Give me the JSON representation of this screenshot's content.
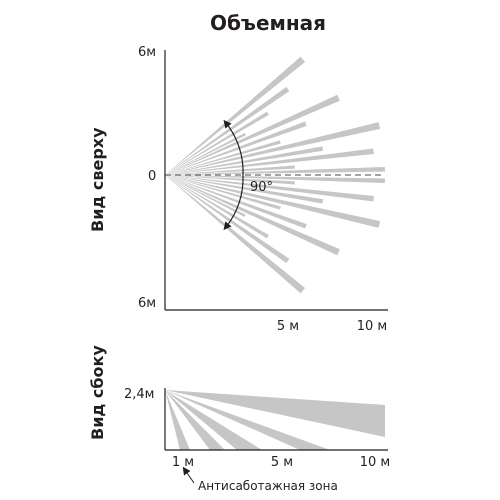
{
  "title": "Объемная",
  "top_view": {
    "label": "Вид сверху",
    "y_top_label": "6м",
    "y_mid_label": "0",
    "y_bottom_label": "6м",
    "x_label_5": "5 м",
    "x_label_10": "10 м",
    "angle_label": "90°"
  },
  "side_view": {
    "label": "Вид сбоку",
    "height_label": "2,4м",
    "x_label_1": "1 м",
    "x_label_5": "5 м",
    "x_label_10": "10 м",
    "anti_sabotage_label": "Антисаботажная зона"
  },
  "colors": {
    "beam": "#c6c6c6",
    "axis": "#231f20",
    "dashed": "#6d6e70",
    "text": "#231f20"
  }
}
